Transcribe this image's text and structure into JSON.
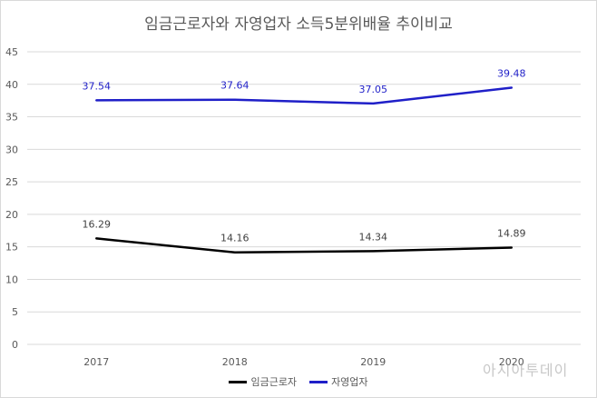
{
  "chart_data": {
    "type": "line",
    "title": "임금근로자와 자영업자 소득5분위배율 추이비교",
    "categories": [
      "2017",
      "2018",
      "2019",
      "2020"
    ],
    "ylim": [
      0,
      45
    ],
    "yticks": [
      "0",
      "5",
      "10",
      "15",
      "20",
      "25",
      "30",
      "35",
      "40",
      "45"
    ],
    "grid": true,
    "legend_position": "bottom",
    "series": [
      {
        "name": "임금근로자",
        "color": "#000000",
        "values": [
          16.29,
          14.16,
          14.34,
          14.89
        ],
        "labels": [
          "16.29",
          "14.16",
          "14.34",
          "14.89"
        ]
      },
      {
        "name": "자영업자",
        "color": "#1f1fc8",
        "values": [
          37.54,
          37.64,
          37.05,
          39.48
        ],
        "labels": [
          "37.54",
          "37.64",
          "37.05",
          "39.48"
        ]
      }
    ]
  },
  "watermark": "아시아투데이"
}
